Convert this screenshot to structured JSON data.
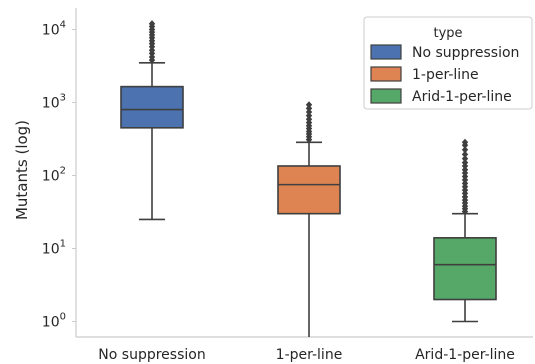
{
  "chart_data": {
    "type": "box",
    "categories": [
      "No suppression",
      "1-per-line",
      "Arid-1-per-line"
    ],
    "ylabel": "Mutants (log)",
    "xlabel": "",
    "yscale": "log",
    "ylim": [
      0.5,
      20000
    ],
    "yticks": [
      {
        "value": 1,
        "base": "10",
        "exp": "0"
      },
      {
        "value": 10,
        "base": "10",
        "exp": "1"
      },
      {
        "value": 100,
        "base": "10",
        "exp": "2"
      },
      {
        "value": 1000,
        "base": "10",
        "exp": "3"
      },
      {
        "value": 10000,
        "base": "10",
        "exp": "4"
      }
    ],
    "grid": false,
    "legend": {
      "title": "type",
      "placement": "top-right",
      "entries": [
        "No suppression",
        "1-per-line",
        "Arid-1-per-line"
      ]
    },
    "series": [
      {
        "name": "No suppression",
        "color": "#4c72b0",
        "whisker_low": 25,
        "q1": 450,
        "median": 800,
        "q3": 1650,
        "whisker_high": 3500,
        "outliers": [
          3800,
          4200,
          4700,
          5200,
          5800,
          6400,
          7000,
          7700,
          8400,
          9200,
          10000,
          11000,
          12000
        ]
      },
      {
        "name": "1-per-line",
        "color": "#dd8452",
        "whisker_low": 0.55,
        "q1": 30,
        "median": 75,
        "q3": 135,
        "whisker_high": 285,
        "outliers": [
          310,
          340,
          370,
          400,
          440,
          480,
          530,
          590,
          660,
          740,
          830,
          930
        ]
      },
      {
        "name": "Arid-1-per-line",
        "color": "#55a868",
        "whisker_low": 1,
        "q1": 2,
        "median": 6,
        "q3": 14,
        "whisker_high": 30,
        "outliers": [
          32,
          35,
          38,
          42,
          46,
          51,
          57,
          63,
          70,
          78,
          87,
          97,
          108,
          120,
          135,
          150,
          170,
          195,
          225,
          260,
          285
        ]
      }
    ]
  }
}
